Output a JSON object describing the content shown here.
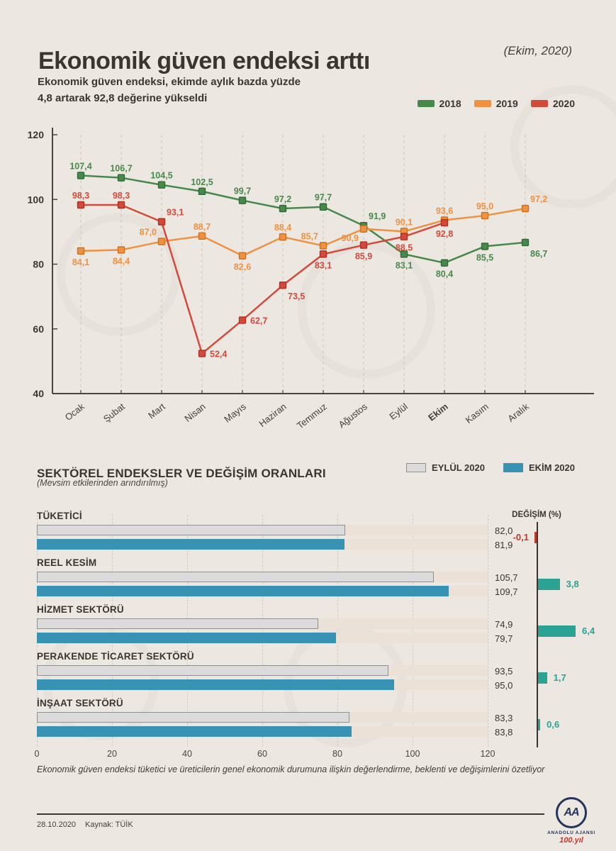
{
  "header": {
    "title": "Ekonomik güven endeksi arttı",
    "period": "(Ekim, 2020)",
    "subtitle_lines": [
      "Ekonomik güven endeksi, ekimde aylık bazda yüzde",
      "4,8 artarak 92,8 değerine yükseldi"
    ]
  },
  "chart_data": [
    {
      "type": "line",
      "categories": [
        "Ocak",
        "Şubat",
        "Mart",
        "Nisan",
        "Mayıs",
        "Haziran",
        "Temmuz",
        "Ağustos",
        "Eylül",
        "Ekim",
        "Kasım",
        "Aralık"
      ],
      "emphasis_category": "Ekim",
      "ylim": [
        40,
        120
      ],
      "yticks": [
        120,
        100,
        80,
        60,
        40
      ],
      "grid": "vertical-dashed",
      "legend_position": "top-right",
      "colors": {
        "grid": "#CBC4BC",
        "axis": "#4A453E",
        "tick_text": "#3A362F"
      },
      "series": [
        {
          "name": "2018",
          "color": "#47894B",
          "marker_stroke": "#2F6B35",
          "values": [
            107.4,
            106.7,
            104.5,
            102.5,
            99.7,
            97.2,
            97.7,
            91.9,
            83.1,
            80.4,
            85.5,
            86.7
          ],
          "label_positions": [
            "a",
            "a",
            "a",
            "a",
            "a",
            "a",
            "a",
            "ar",
            "b",
            "b",
            "b",
            "br"
          ]
        },
        {
          "name": "2019",
          "color": "#EF9140",
          "marker_stroke": "#C9711F",
          "values": [
            84.1,
            84.4,
            87.0,
            88.7,
            82.6,
            88.4,
            85.7,
            90.9,
            90.1,
            93.6,
            95.0,
            97.2
          ],
          "label_positions": [
            "b",
            "b",
            "al",
            "a",
            "b",
            "a",
            "al",
            "bl",
            "a",
            "a",
            "a",
            "ar"
          ]
        },
        {
          "name": "2020",
          "color": "#D5493A",
          "marker_stroke": "#AD3124",
          "values": [
            98.3,
            98.3,
            93.1,
            52.4,
            62.7,
            73.5,
            83.1,
            85.9,
            88.5,
            92.8,
            null,
            null
          ],
          "label_positions": [
            "a",
            "a",
            "ar",
            "r",
            "r",
            "br",
            "b",
            "b",
            "b",
            "b",
            "a",
            "a"
          ]
        }
      ]
    },
    {
      "type": "bar",
      "title": "SEKTÖREL ENDEKSLER VE DEĞİŞİM ORANLARI",
      "subtitle": "(Mevsim etkilerinden arındırılmış)",
      "categories": [
        "TÜKETİCİ",
        "REEL KESİM",
        "HİZMET SEKTÖRÜ",
        "PERAKENDE TİCARET SEKTÖRÜ",
        "İNŞAAT SEKTÖRÜ"
      ],
      "xlim": [
        0,
        120
      ],
      "xticks": [
        0,
        20,
        40,
        60,
        80,
        100,
        120
      ],
      "series": [
        {
          "name": "EYLÜL 2020",
          "color": "#DBDBDB",
          "border": "#909090",
          "values": [
            82.0,
            105.7,
            74.9,
            93.5,
            83.3
          ]
        },
        {
          "name": "EKİM 2020",
          "color": "#3892B4",
          "border": "#3892B4",
          "values": [
            81.9,
            109.7,
            79.7,
            95.0,
            83.8
          ]
        }
      ],
      "changes": {
        "label": "DEĞİŞİM (%)",
        "values": [
          -0.1,
          3.8,
          6.4,
          1.7,
          0.6
        ],
        "positive_color": "#2AA294",
        "negative_color": "#C03A2B"
      },
      "track_color": "#EBE1D6"
    }
  ],
  "footer": {
    "footnote": "Ekonomik güven endeksi tüketici ve üreticilerin genel ekonomik durumuna ilişkin değerlendirme, beklenti ve değişimlerini özetliyor",
    "date": "28.10.2020",
    "source": "Kaynak: TÜİK"
  },
  "logo": {
    "monogram": "AA",
    "name": "ANADOLU AJANSI",
    "anniversary": "100.yıl"
  }
}
